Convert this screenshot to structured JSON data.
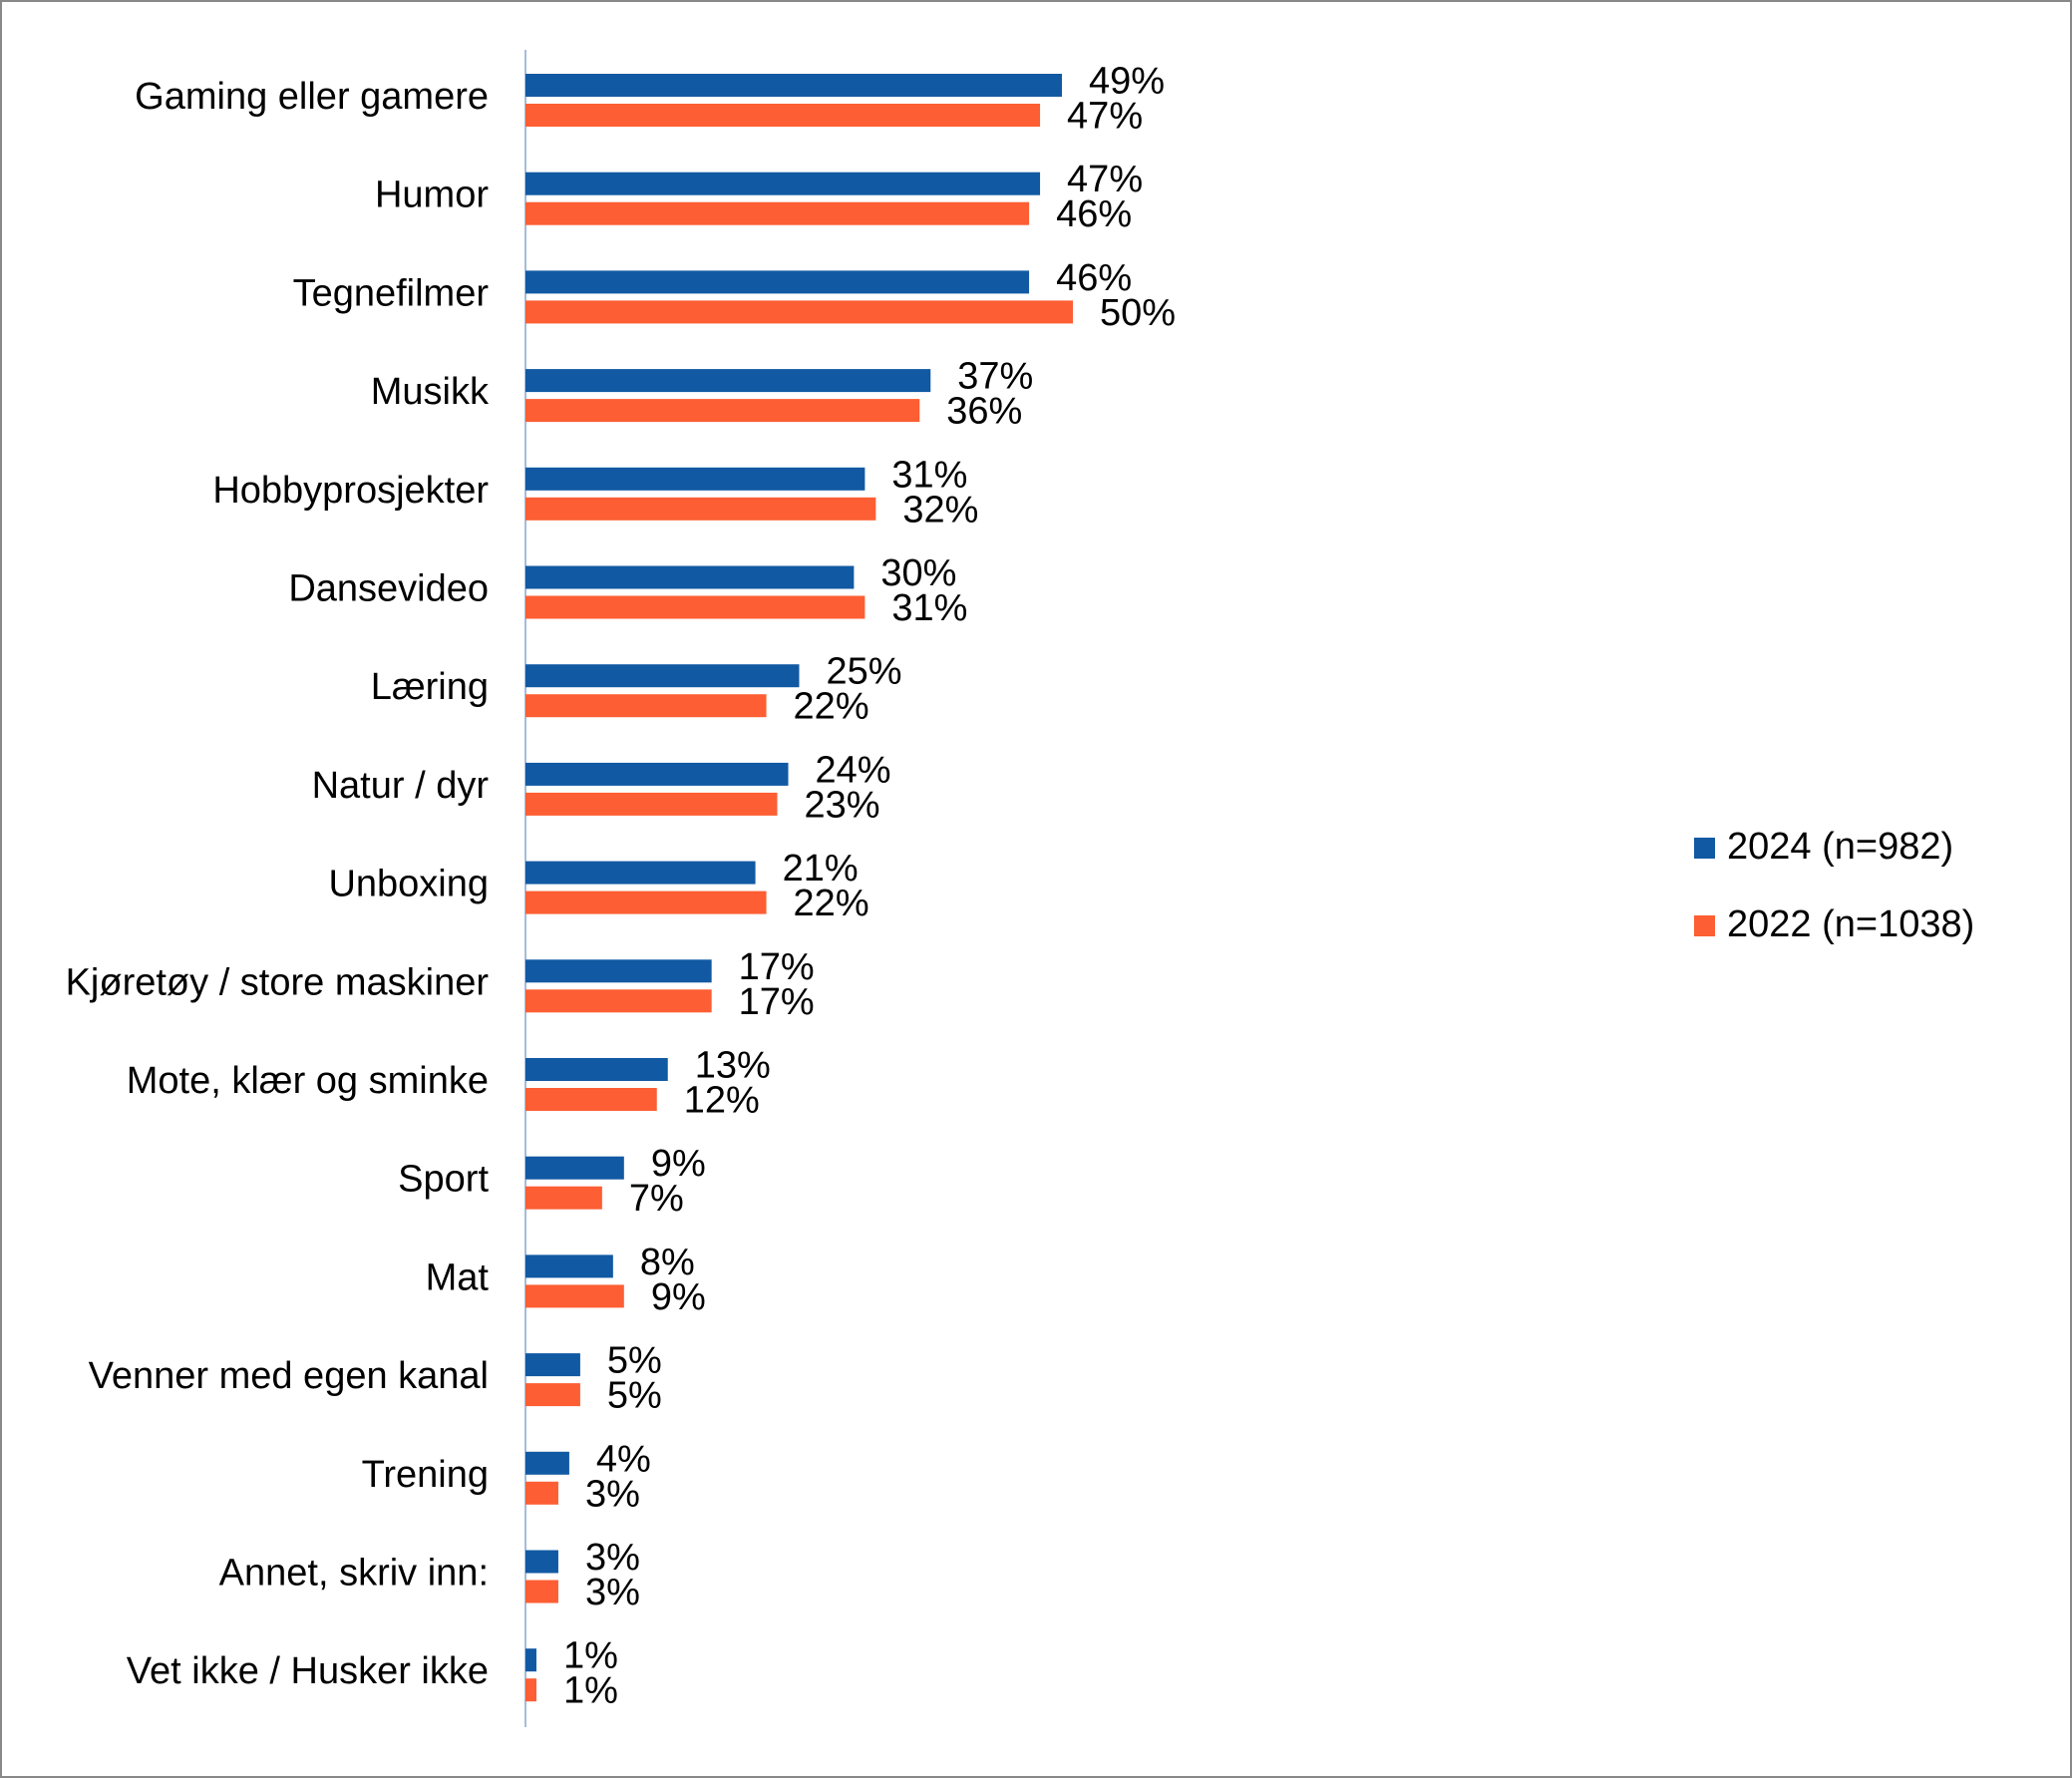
{
  "chart_data": {
    "type": "bar",
    "orientation": "horizontal",
    "categories": [
      "Gaming eller gamere",
      "Humor",
      "Tegnefilmer",
      "Musikk",
      "Hobbyprosjekter",
      "Dansevideo",
      "Læring",
      "Natur / dyr",
      "Unboxing",
      "Kjøretøy / store maskiner",
      "Mote, klær og sminke",
      "Sport",
      "Mat",
      "Venner med egen kanal",
      "Trening",
      "Annet, skriv inn:",
      "Vet ikke / Husker ikke"
    ],
    "series": [
      {
        "name": "2024 (n=982)",
        "color": "#1159a3",
        "values": [
          49,
          47,
          46,
          37,
          31,
          30,
          25,
          24,
          21,
          17,
          13,
          9,
          8,
          5,
          4,
          3,
          1
        ],
        "value_labels": [
          "49%",
          "47%",
          "46%",
          "37%",
          "31%",
          "30%",
          "25%",
          "24%",
          "21%",
          "17%",
          "13%",
          "9%",
          "8%",
          "5%",
          "4%",
          "3%",
          "1%"
        ]
      },
      {
        "name": "2022 (n=1038)",
        "color": "#fd5e33",
        "values": [
          47,
          46,
          50,
          36,
          32,
          31,
          22,
          23,
          22,
          17,
          12,
          7,
          9,
          5,
          3,
          3,
          1
        ],
        "value_labels": [
          "47%",
          "46%",
          "50%",
          "36%",
          "32%",
          "31%",
          "22%",
          "23%",
          "22%",
          "17%",
          "12%",
          "7%",
          "9%",
          "5%",
          "3%",
          "3%",
          "1%"
        ]
      }
    ],
    "legend": "right"
  }
}
